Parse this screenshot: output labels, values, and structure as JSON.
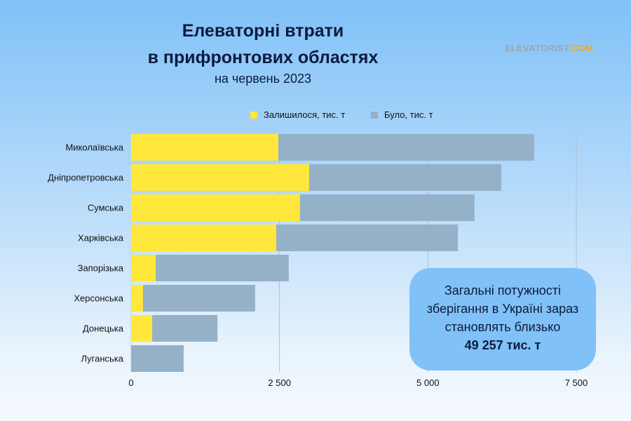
{
  "title_line1": "Елеваторні втрати",
  "title_line2": "в прифронтових областях",
  "subtitle": "на червень 2023",
  "logo": {
    "part1": "ELEVATORIST",
    "part2": ".COM"
  },
  "callout": {
    "line1": "Загальні потужності",
    "line2": "зберігання в Україні зараз",
    "line3": "становлять близько",
    "value": "49 257 тис. т"
  },
  "chart_data": {
    "type": "bar",
    "orientation": "horizontal",
    "overlay": true,
    "categories": [
      "Миколаївська",
      "Дніпропетровська",
      "Сумська",
      "Харківська",
      "Запорізька",
      "Херсонська",
      "Донецька",
      "Луганська"
    ],
    "series": [
      {
        "name": "Залишилося, тис. т",
        "color": "#ffe83b",
        "values": [
          2480,
          3000,
          2845,
          2445,
          415,
          200,
          355,
          0
        ]
      },
      {
        "name": "Було, тис. т",
        "color": "#94b1c8",
        "values": [
          6790,
          6235,
          5785,
          5505,
          2655,
          2090,
          1455,
          885
        ]
      }
    ],
    "xlim": [
      0,
      7500
    ],
    "xticks": [
      0,
      2500,
      5000,
      7500
    ],
    "xtick_labels": [
      "0",
      "2 500",
      "5 000",
      "7 500"
    ],
    "grid": "vertical",
    "legend": "top"
  }
}
